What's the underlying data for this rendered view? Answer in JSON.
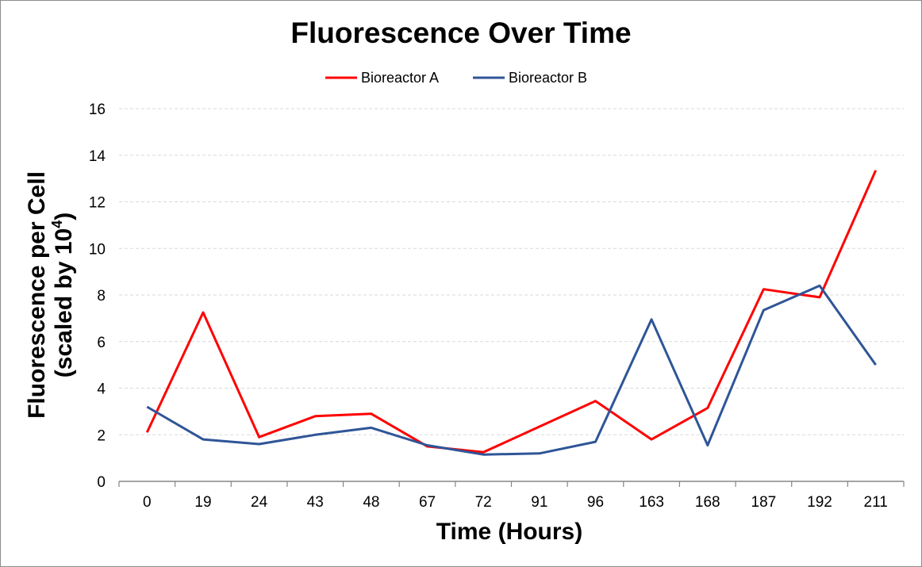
{
  "chart_data": {
    "type": "line",
    "title": "Fluorescence Over Time",
    "xlabel": "Time (Hours)",
    "ylabel": {
      "line1": "Fluorescence per Cell",
      "line2_prefix": "(scaled by 10",
      "line2_sup": "4",
      "line2_suffix": ")"
    },
    "categories": [
      "0",
      "19",
      "24",
      "43",
      "48",
      "67",
      "72",
      "91",
      "96",
      "163",
      "168",
      "187",
      "192",
      "211"
    ],
    "ylim": [
      0,
      16
    ],
    "yticks": [
      "0",
      "2",
      "4",
      "6",
      "8",
      "10",
      "12",
      "14",
      "16"
    ],
    "grid": true,
    "legend_position": "top",
    "series": [
      {
        "name": "Bioreactor A",
        "color": "#ff0000",
        "values": [
          2.1,
          7.25,
          1.9,
          2.8,
          2.9,
          1.5,
          1.25,
          2.35,
          3.45,
          1.8,
          3.15,
          8.25,
          7.9,
          13.35
        ]
      },
      {
        "name": "Bioreactor B",
        "color": "#2f5597",
        "values": [
          3.2,
          1.8,
          1.6,
          2.0,
          2.3,
          1.55,
          1.15,
          1.2,
          1.7,
          6.95,
          1.55,
          7.35,
          8.4,
          5.0
        ]
      }
    ]
  }
}
